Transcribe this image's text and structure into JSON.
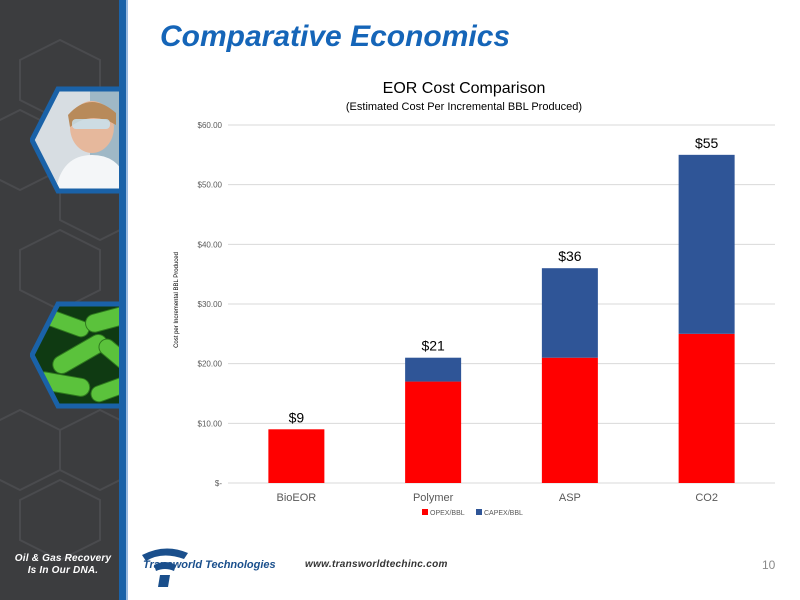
{
  "slide": {
    "title": "Comparative Economics",
    "tagline_line1": "Oil & Gas Recovery",
    "tagline_line2": "Is In Our DNA.",
    "logo_text": "Transworld Technologies",
    "url": "www.transworldtechinc.com",
    "page_number": "10"
  },
  "colors": {
    "accent": "#1565b8",
    "opex": "#ff0000",
    "capex": "#2f5597",
    "sidebar": "#3c3d3f"
  },
  "icons": {
    "photo1": "scientist-photo",
    "photo2": "bacteria-photo",
    "logo": "transworld-logo-icon"
  },
  "chart_data": {
    "type": "bar",
    "stacked": true,
    "title": "EOR Cost Comparison",
    "subtitle": "(Estimated Cost Per Incremental BBL Produced)",
    "ylabel": "Cost per Incremental BBL Produced",
    "xlabel": "",
    "categories": [
      "BioEOR",
      "Polymer",
      "ASP",
      "CO2"
    ],
    "series": [
      {
        "name": "OPEX/BBL",
        "values": [
          9,
          17,
          21,
          25
        ]
      },
      {
        "name": "CAPEX/BBL",
        "values": [
          0,
          4,
          15,
          30
        ]
      }
    ],
    "totals_labels": [
      "$9",
      "$21",
      "$36",
      "$55"
    ],
    "ylim": [
      0,
      60
    ],
    "yticks": [
      0,
      10,
      20,
      30,
      40,
      50,
      60
    ],
    "ytick_labels": [
      "$-",
      "$10.00",
      "$20.00",
      "$30.00",
      "$40.00",
      "$50.00",
      "$60.00"
    ],
    "grid": true,
    "legend_position": "bottom"
  }
}
